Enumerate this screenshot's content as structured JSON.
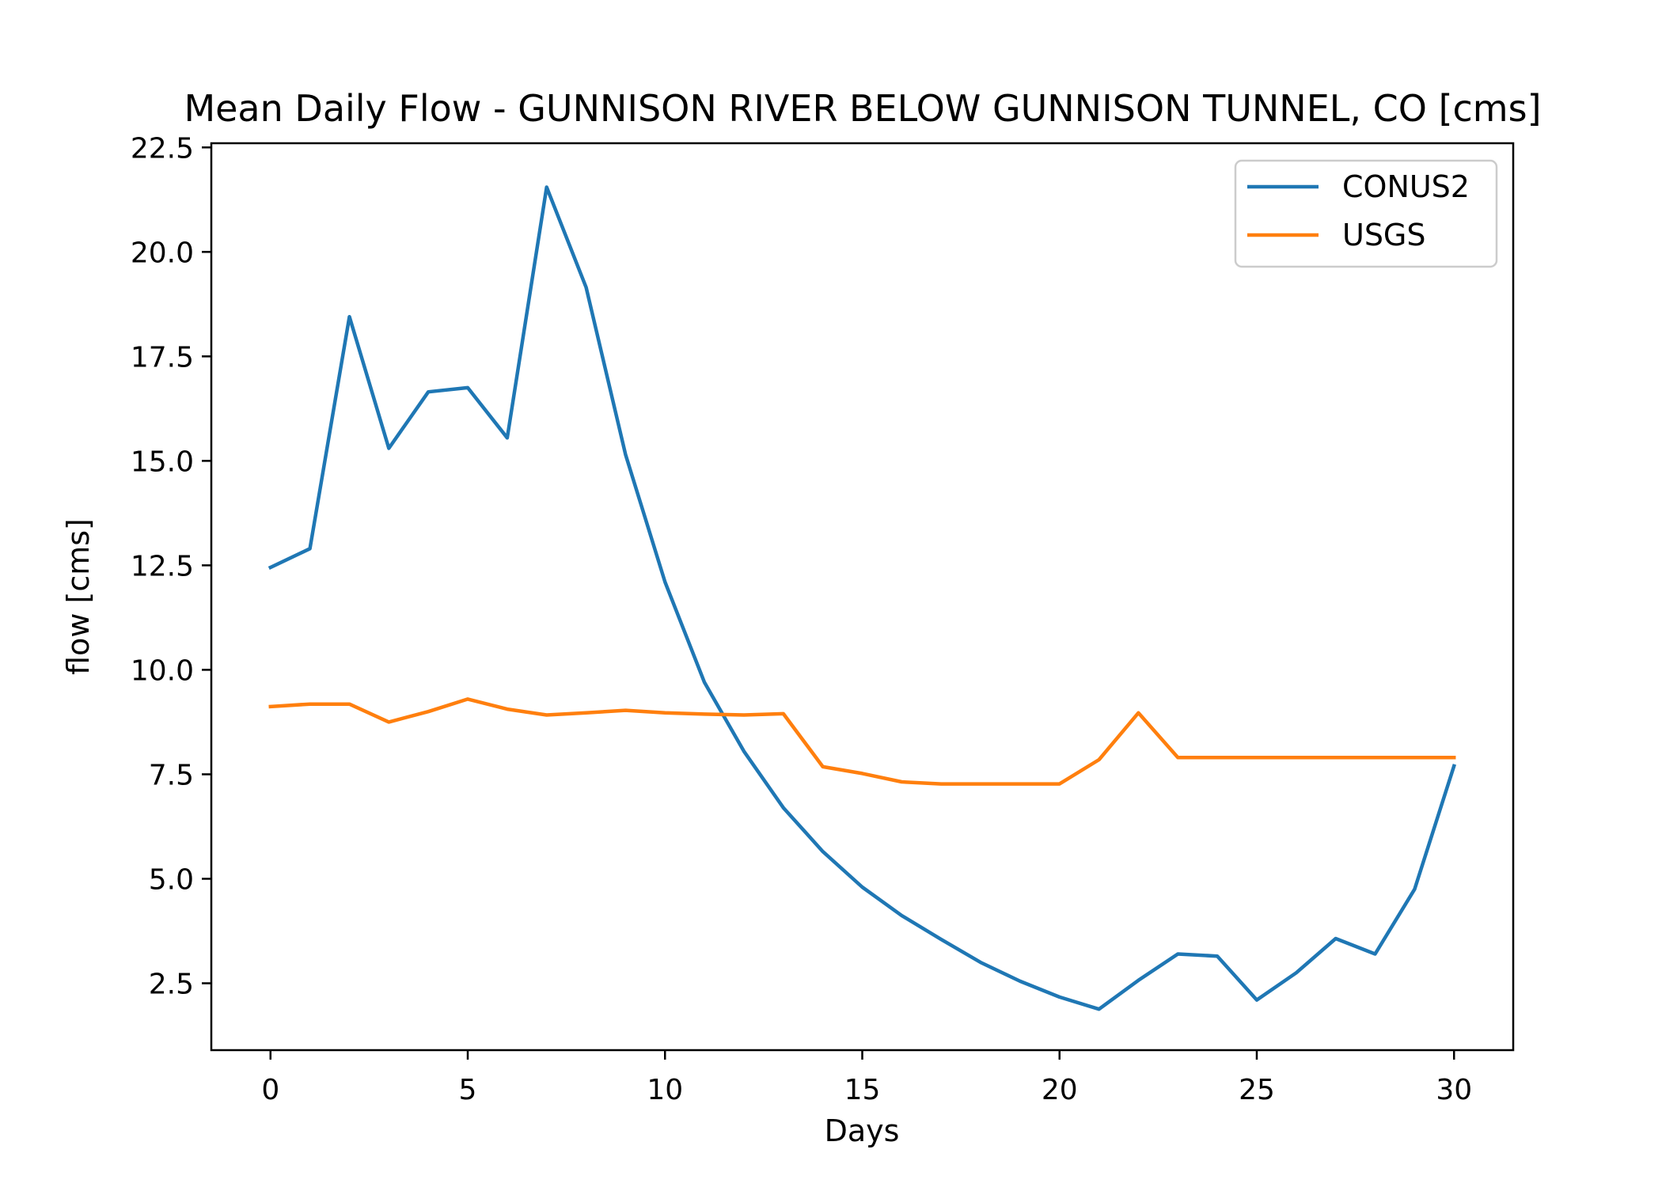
{
  "chart_data": {
    "type": "line",
    "title": "Mean Daily Flow - GUNNISON RIVER BELOW GUNNISON TUNNEL, CO [cms]",
    "xlabel": "Days",
    "ylabel": "flow [cms]",
    "xlim": [
      -1.5,
      31.5
    ],
    "ylim": [
      0.9,
      22.6
    ],
    "xticks": [
      0,
      5,
      10,
      15,
      20,
      25,
      30
    ],
    "xtick_labels": [
      "0",
      "5",
      "10",
      "15",
      "20",
      "25",
      "30"
    ],
    "yticks": [
      2.5,
      5.0,
      7.5,
      10.0,
      12.5,
      15.0,
      17.5,
      20.0,
      22.5
    ],
    "ytick_labels": [
      "2.5",
      "5.0",
      "7.5",
      "10.0",
      "12.5",
      "15.0",
      "17.5",
      "20.0",
      "22.5"
    ],
    "grid": false,
    "legend_position": "top-right",
    "x": [
      0,
      1,
      2,
      3,
      4,
      5,
      6,
      7,
      8,
      9,
      10,
      11,
      12,
      13,
      14,
      15,
      16,
      17,
      18,
      19,
      20,
      21,
      22,
      23,
      24,
      25,
      26,
      27,
      28,
      29,
      30
    ],
    "series": [
      {
        "name": "CONUS2",
        "color": "#1f77b4",
        "values": [
          12.45,
          12.9,
          18.45,
          15.3,
          16.65,
          16.75,
          15.55,
          21.55,
          19.15,
          15.15,
          12.1,
          9.7,
          8.05,
          6.7,
          5.65,
          4.8,
          4.12,
          3.55,
          3.0,
          2.55,
          2.17,
          1.88,
          2.57,
          3.2,
          3.15,
          2.1,
          2.75,
          3.57,
          3.2,
          4.75,
          7.7
        ]
      },
      {
        "name": "USGS",
        "color": "#ff7f0e",
        "values": [
          9.12,
          9.18,
          9.18,
          8.75,
          9.0,
          9.3,
          9.06,
          8.92,
          8.97,
          9.03,
          8.97,
          8.94,
          8.92,
          8.95,
          7.68,
          7.52,
          7.32,
          7.27,
          7.27,
          7.27,
          7.27,
          7.85,
          8.97,
          7.9,
          7.9,
          7.9,
          7.9,
          7.9,
          7.9,
          7.9,
          7.9
        ]
      }
    ]
  }
}
